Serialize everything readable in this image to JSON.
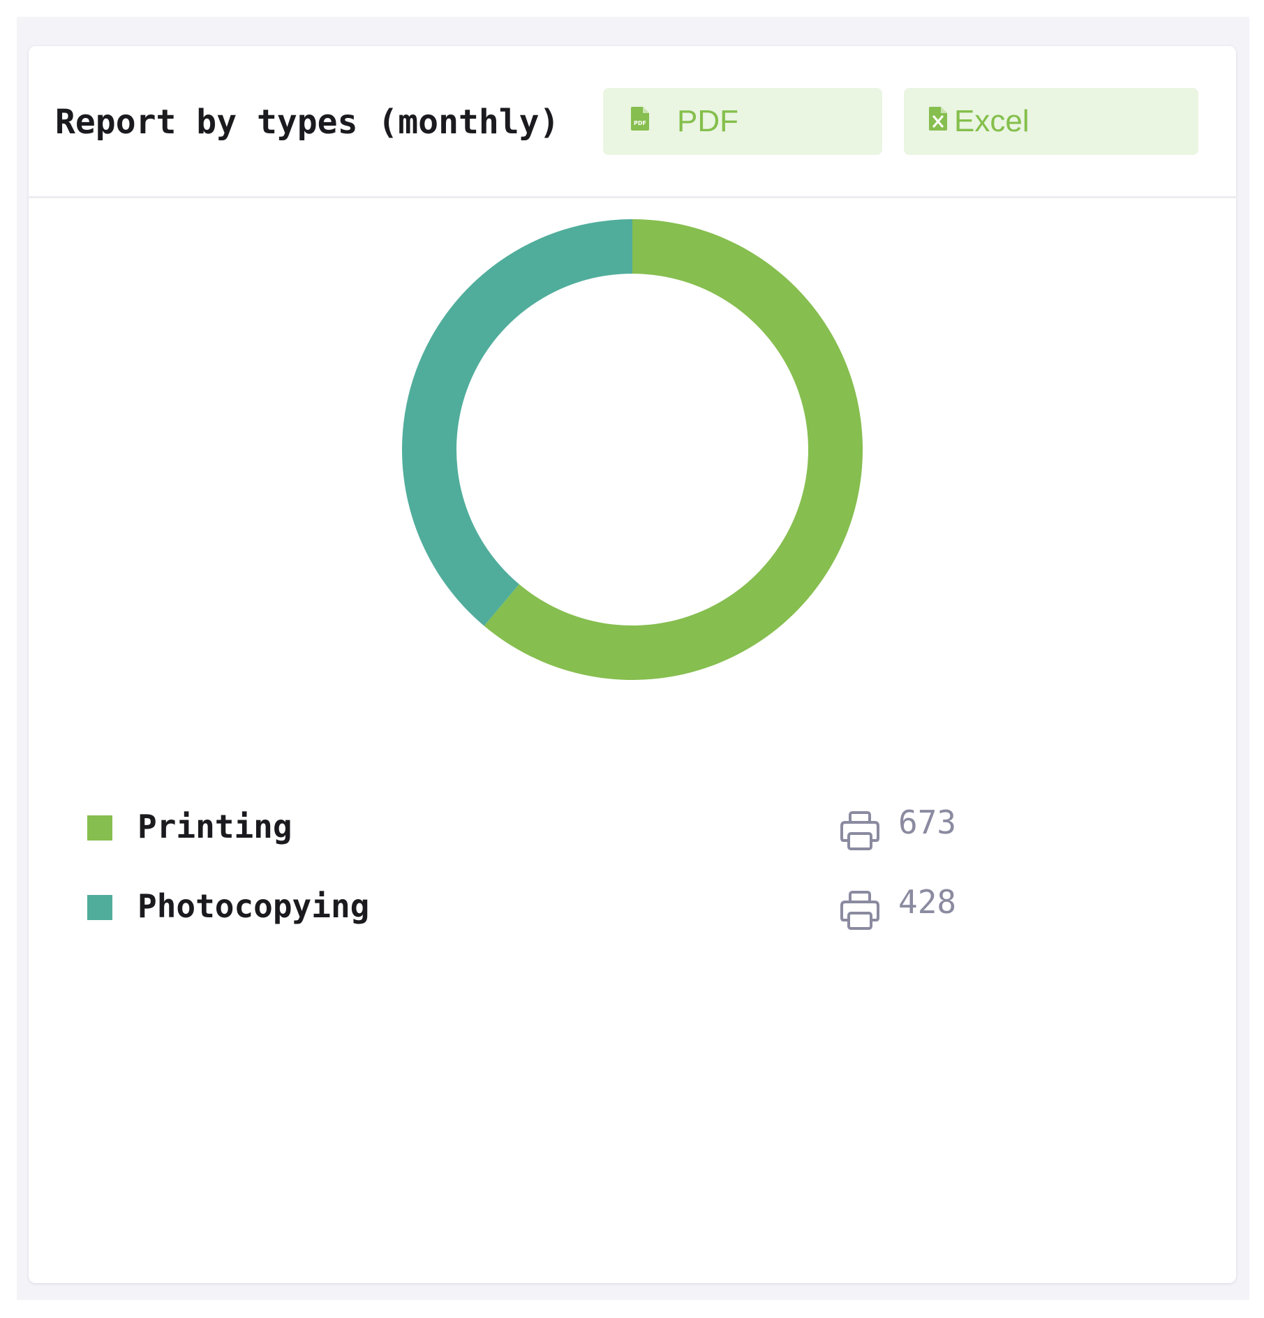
{
  "card": {
    "title": "Report by types (monthly)",
    "export": {
      "pdf_label": "PDF",
      "pdf_icon": "file-pdf-icon",
      "excel_label": "Excel",
      "excel_icon": "file-excel-icon",
      "button_bg": "#eaf5e2",
      "button_text_color": "#84bf4b"
    }
  },
  "chart_data": {
    "type": "pie",
    "style": "donut",
    "categories": [
      "Printing",
      "Photocopying"
    ],
    "values": [
      673,
      428
    ],
    "colors": [
      "#86be4f",
      "#50ad9b"
    ]
  },
  "legend": [
    {
      "label": "Printing",
      "value": "673",
      "color": "#86be4f",
      "icon": "printer-icon"
    },
    {
      "label": "Photocopying",
      "value": "428",
      "color": "#50ad9b",
      "icon": "printer-icon"
    }
  ]
}
